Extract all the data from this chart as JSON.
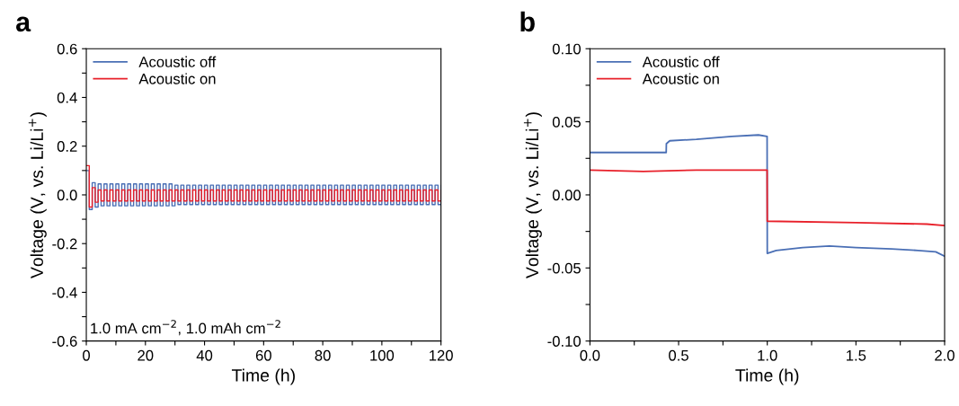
{
  "chart_data": [
    {
      "type": "step",
      "xlabel": "Time (h)",
      "ylabel": "Voltage (V, vs. Li/Li$^{+}$)",
      "annotations": [
        "a",
        "1.0 mA cm$^{−2}$, 1.0 mAh cm$^{−2}$"
      ],
      "x": [
        0,
        1,
        2,
        3,
        4,
        5,
        6,
        7,
        8,
        9,
        10,
        11,
        12,
        13,
        14,
        15,
        16,
        17,
        18,
        19,
        20,
        21,
        22,
        23,
        24,
        25,
        26,
        27,
        28,
        29,
        30,
        31,
        32,
        33,
        34,
        35,
        36,
        37,
        38,
        39,
        40,
        41,
        42,
        43,
        44,
        45,
        46,
        47,
        48,
        49,
        50,
        51,
        52,
        53,
        54,
        55,
        56,
        57,
        58,
        59,
        60,
        61,
        62,
        63,
        64,
        65,
        66,
        67,
        68,
        69,
        70,
        71,
        72,
        73,
        74,
        75,
        76,
        77,
        78,
        79,
        80,
        81,
        82,
        83,
        84,
        85,
        86,
        87,
        88,
        89,
        90,
        91,
        92,
        93,
        94,
        95,
        96,
        97,
        98,
        99,
        100,
        101,
        102,
        103,
        104,
        105,
        106,
        107,
        108,
        109,
        110,
        111,
        112,
        113,
        114,
        115,
        116,
        117,
        118,
        119,
        120
      ],
      "series": [
        {
          "name": "Acoustic off",
          "color": "#4a6fb5",
          "values": [
            0.1,
            -0.06,
            0.05,
            -0.05,
            0.045,
            -0.045,
            0.045,
            -0.045,
            0.045,
            -0.045,
            0.045,
            -0.045,
            0.045,
            -0.045,
            0.045,
            -0.045,
            0.045,
            -0.045,
            0.045,
            -0.045,
            0.045,
            -0.045,
            0.045,
            -0.045,
            0.045,
            -0.045,
            0.045,
            -0.045,
            0.045,
            -0.045,
            0.04,
            -0.04,
            0.04,
            -0.04,
            0.04,
            -0.04,
            0.04,
            -0.04,
            0.04,
            -0.04,
            0.04,
            -0.04,
            0.04,
            -0.04,
            0.04,
            -0.04,
            0.04,
            -0.04,
            0.04,
            -0.04,
            0.04,
            -0.04,
            0.04,
            -0.04,
            0.04,
            -0.04,
            0.04,
            -0.04,
            0.04,
            -0.04,
            0.04,
            -0.04,
            0.04,
            -0.04,
            0.04,
            -0.04,
            0.04,
            -0.04,
            0.04,
            -0.04,
            0.04,
            -0.04,
            0.04,
            -0.04,
            0.04,
            -0.04,
            0.04,
            -0.04,
            0.04,
            -0.04,
            0.04,
            -0.04,
            0.04,
            -0.04,
            0.04,
            -0.04,
            0.04,
            -0.04,
            0.04,
            -0.04,
            0.04,
            -0.04,
            0.04,
            -0.04,
            0.04,
            -0.04,
            0.04,
            -0.04,
            0.04,
            -0.04,
            0.04,
            -0.04,
            0.04,
            -0.04,
            0.04,
            -0.04,
            0.04,
            -0.04,
            0.04,
            -0.04,
            0.04,
            -0.04,
            0.04,
            -0.04,
            0.04,
            -0.04,
            0.04,
            -0.04,
            0.04,
            -0.04,
            0.04
          ]
        },
        {
          "name": "Acoustic on",
          "color": "#e8202a",
          "values": [
            0.12,
            -0.05,
            0.03,
            -0.03,
            0.02,
            -0.025,
            0.02,
            -0.025,
            0.02,
            -0.025,
            0.02,
            -0.025,
            0.02,
            -0.025,
            0.02,
            -0.025,
            0.02,
            -0.025,
            0.02,
            -0.025,
            0.02,
            -0.025,
            0.02,
            -0.025,
            0.02,
            -0.025,
            0.02,
            -0.025,
            0.02,
            -0.025,
            0.02,
            -0.025,
            0.02,
            -0.025,
            0.02,
            -0.025,
            0.02,
            -0.025,
            0.02,
            -0.025,
            0.02,
            -0.025,
            0.02,
            -0.025,
            0.02,
            -0.025,
            0.02,
            -0.025,
            0.02,
            -0.025,
            0.02,
            -0.025,
            0.02,
            -0.025,
            0.02,
            -0.025,
            0.02,
            -0.025,
            0.02,
            -0.025,
            0.02,
            -0.025,
            0.02,
            -0.025,
            0.02,
            -0.025,
            0.02,
            -0.025,
            0.02,
            -0.025,
            0.02,
            -0.025,
            0.02,
            -0.025,
            0.02,
            -0.025,
            0.02,
            -0.025,
            0.02,
            -0.025,
            0.02,
            -0.025,
            0.02,
            -0.025,
            0.02,
            -0.025,
            0.02,
            -0.025,
            0.02,
            -0.025,
            0.02,
            -0.025,
            0.02,
            -0.025,
            0.02,
            -0.025,
            0.02,
            -0.025,
            0.02,
            -0.025,
            0.02,
            -0.025,
            0.02,
            -0.025,
            0.02,
            -0.025,
            0.02,
            -0.025,
            0.02,
            -0.025,
            0.02,
            -0.025,
            0.02,
            -0.025,
            0.02,
            -0.025,
            0.02,
            -0.025,
            0.02,
            -0.025,
            0.02
          ]
        }
      ],
      "xlim": [
        0,
        120
      ],
      "xticks": [
        0,
        {
          "value": 10,
          "label": null
        },
        20,
        {
          "value": 30,
          "label": null
        },
        40,
        {
          "value": 50,
          "label": null
        },
        60,
        {
          "value": 70,
          "label": null
        },
        80,
        {
          "value": 90,
          "label": null
        },
        100,
        {
          "value": 110,
          "label": null
        },
        120
      ],
      "ylim": [
        -0.6,
        0.6
      ],
      "yticks": [
        {
          "value": -0.6,
          "label": "-0.6"
        },
        {
          "value": -0.5,
          "label": null
        },
        {
          "value": -0.4,
          "label": "-0.4"
        },
        {
          "value": -0.3,
          "label": null
        },
        {
          "value": -0.2,
          "label": "-0.2"
        },
        {
          "value": -0.1,
          "label": null
        },
        {
          "value": 0,
          "label": "0.0"
        },
        {
          "value": 0.1,
          "label": null
        },
        {
          "value": 0.2,
          "label": "0.2"
        },
        {
          "value": 0.3,
          "label": null
        },
        {
          "value": 0.4,
          "label": "0.4"
        },
        {
          "value": 0.5,
          "label": null
        },
        {
          "value": 0.6,
          "label": "0.6"
        }
      ],
      "legend": "top left",
      "grid": false
    },
    {
      "type": "line",
      "xlabel": "Time (h)",
      "ylabel": "Voltage (V, vs. Li/Li$^{+}$)",
      "annotations": [
        "b"
      ],
      "series": [
        {
          "name": "Acoustic off",
          "color": "#4a6fb5",
          "x": [
            0,
            0.1,
            0.2,
            0.3,
            0.43,
            0.431,
            0.45,
            0.6,
            0.8,
            0.95,
            0.999,
            1.0,
            1.05,
            1.2,
            1.35,
            1.5,
            1.7,
            1.85,
            1.95,
            2.0
          ],
          "values": [
            0.029,
            0.029,
            0.029,
            0.029,
            0.029,
            0.035,
            0.037,
            0.038,
            0.04,
            0.041,
            0.04,
            -0.04,
            -0.038,
            -0.036,
            -0.035,
            -0.036,
            -0.037,
            -0.038,
            -0.039,
            -0.042
          ]
        },
        {
          "name": "Acoustic on",
          "color": "#e8202a",
          "x": [
            0,
            0.3,
            0.6,
            0.999,
            1.0,
            1.5,
            1.9,
            2.0
          ],
          "values": [
            0.017,
            0.016,
            0.017,
            0.017,
            -0.018,
            -0.019,
            -0.02,
            -0.021
          ]
        }
      ],
      "xlim": [
        0,
        2
      ],
      "xticks": [
        {
          "value": 0,
          "label": "0.0"
        },
        {
          "value": 0.25,
          "label": null
        },
        {
          "value": 0.5,
          "label": "0.5"
        },
        {
          "value": 0.75,
          "label": null
        },
        {
          "value": 1,
          "label": "1.0"
        },
        {
          "value": 1.25,
          "label": null
        },
        {
          "value": 1.5,
          "label": "1.5"
        },
        {
          "value": 1.75,
          "label": null
        },
        {
          "value": 2,
          "label": "2.0"
        }
      ],
      "ylim": [
        -0.1,
        0.1
      ],
      "yticks": [
        {
          "value": -0.1,
          "label": "-0.10"
        },
        {
          "value": -0.075,
          "label": null
        },
        {
          "value": -0.05,
          "label": "-0.05"
        },
        {
          "value": -0.025,
          "label": null
        },
        {
          "value": 0,
          "label": "0.00"
        },
        {
          "value": 0.025,
          "label": null
        },
        {
          "value": 0.05,
          "label": "0.05"
        },
        {
          "value": 0.075,
          "label": null
        },
        {
          "value": 0.1,
          "label": "0.10"
        }
      ],
      "legend": "top left",
      "grid": false
    }
  ]
}
